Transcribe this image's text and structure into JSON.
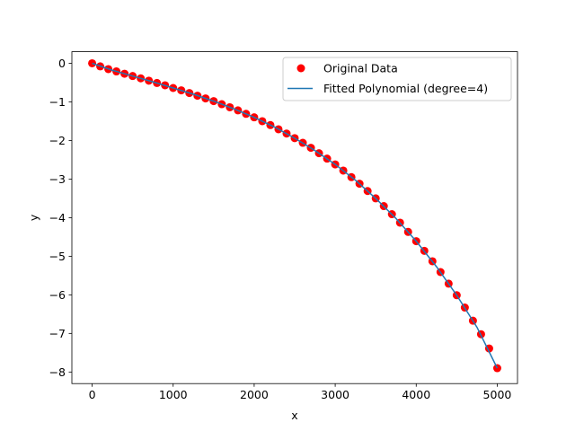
{
  "chart_data": {
    "type": "scatter",
    "xlabel": "x",
    "ylabel": "y",
    "xlim": [
      -250,
      5250
    ],
    "ylim": [
      -8.3,
      0.3
    ],
    "xticks": [
      0,
      1000,
      2000,
      3000,
      4000,
      5000
    ],
    "yticks": [
      0,
      -1,
      -2,
      -3,
      -4,
      -5,
      -6,
      -7,
      -8
    ],
    "xtick_labels": [
      "0",
      "1000",
      "2000",
      "3000",
      "4000",
      "5000"
    ],
    "ytick_labels": [
      "0",
      "−1",
      "−2",
      "−3",
      "−4",
      "−5",
      "−6",
      "−7",
      "−8"
    ],
    "grid": false,
    "legend_position": "top-right",
    "series": [
      {
        "name": "Original Data",
        "kind": "scatter",
        "color": "#ff0000",
        "x": [
          0,
          100,
          200,
          300,
          400,
          500,
          600,
          700,
          800,
          900,
          1000,
          1100,
          1200,
          1300,
          1400,
          1500,
          1600,
          1700,
          1800,
          1900,
          2000,
          2100,
          2200,
          2300,
          2400,
          2500,
          2600,
          2700,
          2800,
          2900,
          3000,
          3100,
          3200,
          3300,
          3400,
          3500,
          3600,
          3700,
          3800,
          3900,
          4000,
          4100,
          4200,
          4300,
          4400,
          4500,
          4600,
          4700,
          4800,
          4900,
          5000
        ],
        "y": [
          0,
          -0.08,
          -0.15,
          -0.21,
          -0.27,
          -0.33,
          -0.39,
          -0.45,
          -0.51,
          -0.57,
          -0.64,
          -0.7,
          -0.77,
          -0.84,
          -0.91,
          -0.98,
          -1.06,
          -1.14,
          -1.22,
          -1.31,
          -1.4,
          -1.5,
          -1.6,
          -1.71,
          -1.82,
          -1.94,
          -2.06,
          -2.19,
          -2.33,
          -2.47,
          -2.62,
          -2.78,
          -2.95,
          -3.12,
          -3.31,
          -3.5,
          -3.7,
          -3.91,
          -4.13,
          -4.37,
          -4.61,
          -4.86,
          -5.13,
          -5.41,
          -5.71,
          -6.01,
          -6.33,
          -6.67,
          -7.02,
          -7.39,
          -7.9
        ]
      },
      {
        "name": "Fitted Polynomial (degree=4)",
        "kind": "line",
        "color": "#1f77b4",
        "x": [
          0,
          250,
          500,
          750,
          1000,
          1250,
          1500,
          1750,
          2000,
          2250,
          2500,
          2750,
          3000,
          3250,
          3500,
          3750,
          4000,
          4250,
          4500,
          4750,
          5000
        ],
        "y": [
          0,
          -0.18,
          -0.33,
          -0.48,
          -0.64,
          -0.8,
          -0.98,
          -1.18,
          -1.4,
          -1.65,
          -1.94,
          -2.26,
          -2.62,
          -3.03,
          -3.5,
          -4.02,
          -4.61,
          -5.27,
          -6.01,
          -6.84,
          -7.9
        ]
      }
    ]
  }
}
